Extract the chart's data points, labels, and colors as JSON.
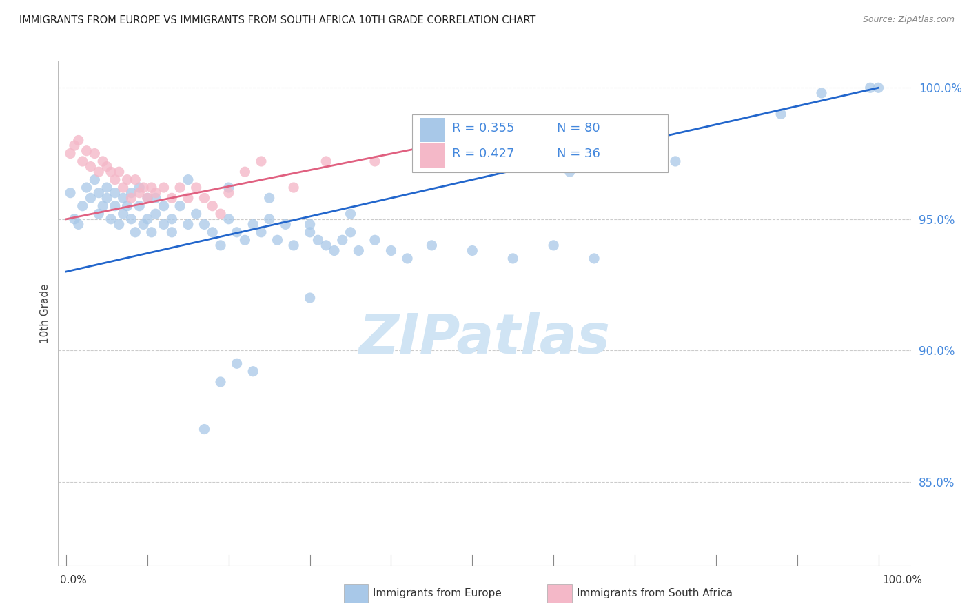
{
  "title": "IMMIGRANTS FROM EUROPE VS IMMIGRANTS FROM SOUTH AFRICA 10TH GRADE CORRELATION CHART",
  "source": "Source: ZipAtlas.com",
  "ylabel": "10th Grade",
  "legend_blue": {
    "R": 0.355,
    "N": 80,
    "label": "Immigrants from Europe"
  },
  "legend_pink": {
    "R": 0.427,
    "N": 36,
    "label": "Immigrants from South Africa"
  },
  "blue_color": "#a8c8e8",
  "pink_color": "#f4b8c8",
  "line_blue": "#2266cc",
  "line_pink": "#e06080",
  "ytick_color": "#4488dd",
  "watermark_color": "#d0e4f4",
  "ytick_labels": [
    "85.0%",
    "90.0%",
    "95.0%",
    "100.0%"
  ],
  "ytick_values": [
    0.85,
    0.9,
    0.95,
    1.0
  ],
  "blue_scatter_x": [
    0.005,
    0.01,
    0.015,
    0.02,
    0.025,
    0.03,
    0.035,
    0.04,
    0.04,
    0.045,
    0.05,
    0.05,
    0.055,
    0.06,
    0.06,
    0.065,
    0.07,
    0.07,
    0.075,
    0.08,
    0.08,
    0.085,
    0.09,
    0.09,
    0.095,
    0.1,
    0.1,
    0.105,
    0.11,
    0.11,
    0.12,
    0.12,
    0.13,
    0.13,
    0.14,
    0.15,
    0.16,
    0.17,
    0.18,
    0.19,
    0.2,
    0.21,
    0.22,
    0.23,
    0.24,
    0.25,
    0.26,
    0.27,
    0.28,
    0.3,
    0.31,
    0.32,
    0.33,
    0.34,
    0.35,
    0.36,
    0.38,
    0.4,
    0.42,
    0.45,
    0.5,
    0.55,
    0.6,
    0.65,
    0.15,
    0.2,
    0.25,
    0.3,
    0.35,
    0.17,
    0.19,
    0.21,
    0.23,
    0.3,
    0.62,
    0.75,
    0.88,
    0.93,
    0.99,
    1.0
  ],
  "blue_scatter_y": [
    0.96,
    0.95,
    0.948,
    0.955,
    0.962,
    0.958,
    0.965,
    0.952,
    0.96,
    0.955,
    0.958,
    0.962,
    0.95,
    0.955,
    0.96,
    0.948,
    0.952,
    0.958,
    0.955,
    0.95,
    0.96,
    0.945,
    0.955,
    0.962,
    0.948,
    0.95,
    0.958,
    0.945,
    0.952,
    0.958,
    0.948,
    0.955,
    0.95,
    0.945,
    0.955,
    0.948,
    0.952,
    0.948,
    0.945,
    0.94,
    0.95,
    0.945,
    0.942,
    0.948,
    0.945,
    0.95,
    0.942,
    0.948,
    0.94,
    0.945,
    0.942,
    0.94,
    0.938,
    0.942,
    0.945,
    0.938,
    0.942,
    0.938,
    0.935,
    0.94,
    0.938,
    0.935,
    0.94,
    0.935,
    0.965,
    0.962,
    0.958,
    0.948,
    0.952,
    0.87,
    0.888,
    0.895,
    0.892,
    0.92,
    0.968,
    0.972,
    0.99,
    0.998,
    1.0,
    1.0
  ],
  "pink_scatter_x": [
    0.005,
    0.01,
    0.015,
    0.02,
    0.025,
    0.03,
    0.035,
    0.04,
    0.045,
    0.05,
    0.055,
    0.06,
    0.065,
    0.07,
    0.075,
    0.08,
    0.085,
    0.09,
    0.095,
    0.1,
    0.105,
    0.11,
    0.12,
    0.13,
    0.14,
    0.15,
    0.16,
    0.17,
    0.18,
    0.19,
    0.2,
    0.22,
    0.24,
    0.28,
    0.32,
    0.38
  ],
  "pink_scatter_y": [
    0.975,
    0.978,
    0.98,
    0.972,
    0.976,
    0.97,
    0.975,
    0.968,
    0.972,
    0.97,
    0.968,
    0.965,
    0.968,
    0.962,
    0.965,
    0.958,
    0.965,
    0.96,
    0.962,
    0.958,
    0.962,
    0.96,
    0.962,
    0.958,
    0.962,
    0.958,
    0.962,
    0.958,
    0.955,
    0.952,
    0.96,
    0.968,
    0.972,
    0.962,
    0.972,
    0.972
  ],
  "blue_line_x0": 0.0,
  "blue_line_x1": 1.0,
  "blue_line_y0": 0.93,
  "blue_line_y1": 1.0,
  "pink_line_x0": 0.0,
  "pink_line_x1": 0.45,
  "pink_line_y0": 0.95,
  "pink_line_y1": 0.978,
  "ylim_min": 0.818,
  "ylim_max": 1.01,
  "xlim_min": -0.01,
  "xlim_max": 1.04
}
